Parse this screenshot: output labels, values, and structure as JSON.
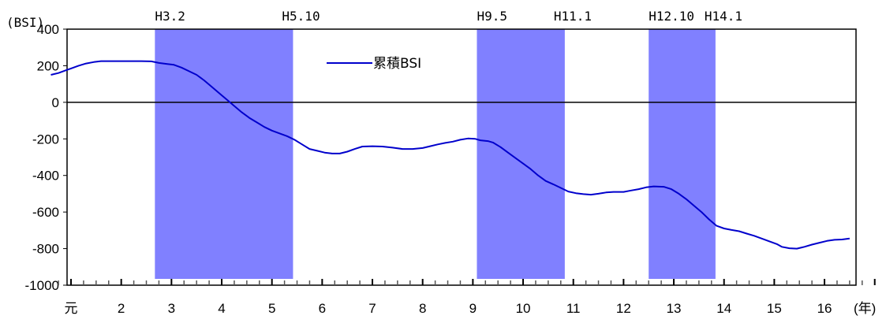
{
  "chart_data": {
    "type": "line",
    "ylabel": "(BSI)",
    "xlabel": "(年)",
    "ylim": [
      -1000,
      400
    ],
    "yticks": [
      "400",
      "200",
      "0",
      "-200",
      "-400",
      "-600",
      "-800",
      "-1000"
    ],
    "xlim": [
      0,
      16.5
    ],
    "xticks": [
      {
        "value": 0,
        "label": "元"
      },
      {
        "value": 1,
        "label": "2"
      },
      {
        "value": 2,
        "label": "3"
      },
      {
        "value": 3,
        "label": "4"
      },
      {
        "value": 4,
        "label": "5"
      },
      {
        "value": 5,
        "label": "6"
      },
      {
        "value": 6,
        "label": "7"
      },
      {
        "value": 7,
        "label": "8"
      },
      {
        "value": 8,
        "label": "9"
      },
      {
        "value": 9,
        "label": "10"
      },
      {
        "value": 10,
        "label": "11"
      },
      {
        "value": 11,
        "label": "12"
      },
      {
        "value": 12,
        "label": "13"
      },
      {
        "value": 13,
        "label": "14"
      },
      {
        "value": 14,
        "label": "15"
      },
      {
        "value": 15,
        "label": "16"
      }
    ],
    "shaded_periods": [
      {
        "start": 1.67,
        "end": 4.42,
        "start_label": "H3.2",
        "end_label": "H5.10"
      },
      {
        "start": 8.08,
        "end": 9.83,
        "start_label": "H9.5",
        "end_label": "H11.1"
      },
      {
        "start": 11.5,
        "end": 12.83,
        "start_label": "H12.10",
        "end_label": "H14.1"
      }
    ],
    "legend": {
      "position": "top-center"
    },
    "series": [
      {
        "name": "累積BSI",
        "color": "#0000cc",
        "points": [
          [
            -0.4,
            150
          ],
          [
            -0.25,
            160
          ],
          [
            -0.1,
            175
          ],
          [
            0.0,
            185
          ],
          [
            0.15,
            200
          ],
          [
            0.3,
            212
          ],
          [
            0.45,
            220
          ],
          [
            0.6,
            225
          ],
          [
            0.8,
            225
          ],
          [
            1.0,
            225
          ],
          [
            1.2,
            225
          ],
          [
            1.4,
            225
          ],
          [
            1.6,
            224
          ],
          [
            1.75,
            215
          ],
          [
            1.9,
            210
          ],
          [
            2.05,
            205
          ],
          [
            2.2,
            190
          ],
          [
            2.35,
            170
          ],
          [
            2.5,
            150
          ],
          [
            2.65,
            120
          ],
          [
            2.8,
            85
          ],
          [
            2.95,
            50
          ],
          [
            3.1,
            15
          ],
          [
            3.25,
            -20
          ],
          [
            3.4,
            -55
          ],
          [
            3.55,
            -85
          ],
          [
            3.7,
            -110
          ],
          [
            3.85,
            -135
          ],
          [
            4.0,
            -155
          ],
          [
            4.15,
            -170
          ],
          [
            4.3,
            -185
          ],
          [
            4.45,
            -205
          ],
          [
            4.6,
            -230
          ],
          [
            4.75,
            -255
          ],
          [
            4.9,
            -265
          ],
          [
            5.05,
            -275
          ],
          [
            5.2,
            -280
          ],
          [
            5.35,
            -280
          ],
          [
            5.5,
            -270
          ],
          [
            5.65,
            -255
          ],
          [
            5.8,
            -242
          ],
          [
            6.0,
            -240
          ],
          [
            6.2,
            -242
          ],
          [
            6.4,
            -248
          ],
          [
            6.6,
            -255
          ],
          [
            6.8,
            -255
          ],
          [
            7.0,
            -250
          ],
          [
            7.15,
            -240
          ],
          [
            7.3,
            -230
          ],
          [
            7.45,
            -222
          ],
          [
            7.6,
            -215
          ],
          [
            7.75,
            -205
          ],
          [
            7.9,
            -198
          ],
          [
            8.05,
            -200
          ],
          [
            8.15,
            -208
          ],
          [
            8.3,
            -212
          ],
          [
            8.4,
            -220
          ],
          [
            8.55,
            -245
          ],
          [
            8.7,
            -275
          ],
          [
            8.85,
            -305
          ],
          [
            9.0,
            -335
          ],
          [
            9.15,
            -365
          ],
          [
            9.3,
            -400
          ],
          [
            9.45,
            -430
          ],
          [
            9.6,
            -448
          ],
          [
            9.75,
            -468
          ],
          [
            9.9,
            -488
          ],
          [
            10.05,
            -497
          ],
          [
            10.2,
            -502
          ],
          [
            10.35,
            -505
          ],
          [
            10.5,
            -500
          ],
          [
            10.65,
            -493
          ],
          [
            10.8,
            -490
          ],
          [
            11.0,
            -490
          ],
          [
            11.15,
            -482
          ],
          [
            11.3,
            -475
          ],
          [
            11.45,
            -465
          ],
          [
            11.6,
            -460
          ],
          [
            11.8,
            -462
          ],
          [
            11.95,
            -475
          ],
          [
            12.1,
            -500
          ],
          [
            12.25,
            -530
          ],
          [
            12.4,
            -565
          ],
          [
            12.55,
            -600
          ],
          [
            12.7,
            -640
          ],
          [
            12.85,
            -675
          ],
          [
            13.0,
            -690
          ],
          [
            13.15,
            -698
          ],
          [
            13.3,
            -705
          ],
          [
            13.45,
            -718
          ],
          [
            13.6,
            -730
          ],
          [
            13.75,
            -745
          ],
          [
            13.9,
            -760
          ],
          [
            14.05,
            -775
          ],
          [
            14.15,
            -790
          ],
          [
            14.3,
            -798
          ],
          [
            14.45,
            -800
          ],
          [
            14.6,
            -790
          ],
          [
            14.75,
            -778
          ],
          [
            14.9,
            -768
          ],
          [
            15.05,
            -758
          ],
          [
            15.2,
            -752
          ],
          [
            15.35,
            -750
          ],
          [
            15.5,
            -745
          ]
        ]
      }
    ]
  }
}
